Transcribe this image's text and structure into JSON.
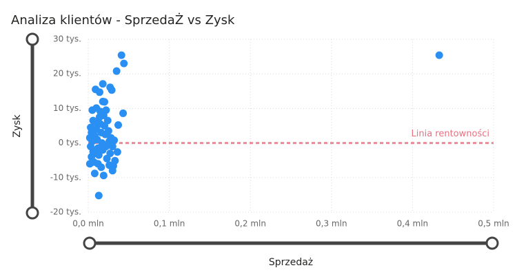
{
  "chart_data": {
    "type": "scatter",
    "title": "Analiza klientów - SprzedaŻ vs Zysk",
    "x_label": "Sprzedaż",
    "y_label": "Zysk",
    "color": "#2a8ff2",
    "xlim": [
      0,
      0.5
    ],
    "xticks": [
      {
        "value": 0,
        "label": "0,0 mln"
      },
      {
        "value": 0.1,
        "label": "0,1 mln"
      },
      {
        "value": 0.2,
        "label": "0,2 mln"
      },
      {
        "value": 0.3,
        "label": "0,3 mln"
      },
      {
        "value": 0.4,
        "label": "0,4 mln"
      },
      {
        "value": 0.5,
        "label": "0,5 mln"
      }
    ],
    "ylim": [
      -20,
      30
    ],
    "yticks": [
      {
        "value": 30,
        "label": "30 tys."
      },
      {
        "value": 20,
        "label": "20 tys."
      },
      {
        "value": 10,
        "label": "10 tys."
      },
      {
        "value": 0,
        "label": "0 tys."
      },
      {
        "value": -10,
        "label": "-10 tys."
      },
      {
        "value": -20,
        "label": "-20 tys."
      }
    ],
    "grid": true,
    "reference_line": {
      "value": 0,
      "label": "Linia rentowności",
      "color": "#e8707f"
    },
    "x": [
      0.433,
      0.041,
      0.044,
      0.035,
      0.027,
      0.029,
      0.009,
      0.014,
      0.018,
      0.02,
      0.043,
      0.037,
      0.013,
      0.019,
      0.008,
      0.03,
      0.031,
      0.026,
      0.033,
      0.036,
      0.005,
      0.01,
      0.015,
      0.003,
      0.004,
      0.002,
      0.005,
      0.003,
      0.006,
      0.004,
      0.007,
      0.008,
      0.009,
      0.01,
      0.011,
      0.012,
      0.013,
      0.014,
      0.015,
      0.016,
      0.017,
      0.018,
      0.019,
      0.02,
      0.021,
      0.022,
      0.023,
      0.024,
      0.025,
      0.026,
      0.027,
      0.028,
      0.03,
      0.032,
      0.012,
      0.016,
      0.009,
      0.006,
      0.002,
      0.022,
      0.018
    ],
    "values": [
      25.4,
      25.4,
      23.0,
      20.8,
      16.1,
      15.3,
      15.5,
      14.7,
      17.1,
      11.9,
      8.6,
      5.2,
      -15.2,
      -9.4,
      -8.8,
      -8.0,
      -6.6,
      -6.4,
      -5.1,
      -2.6,
      9.5,
      10.1,
      9.1,
      4.5,
      3.0,
      1.5,
      0.5,
      -1.0,
      -2.5,
      -4.0,
      -5.5,
      2.0,
      6.0,
      4.0,
      1.0,
      -1.5,
      -3.5,
      7.5,
      5.5,
      3.0,
      0.0,
      -2.0,
      8.0,
      5.0,
      2.5,
      -1.0,
      -4.5,
      6.5,
      3.5,
      0.5,
      -3.0,
      1.5,
      -1.0,
      0.8,
      -6.0,
      -7.0,
      -3.0,
      6.5,
      -6.0,
      9.5,
      12.0
    ]
  }
}
